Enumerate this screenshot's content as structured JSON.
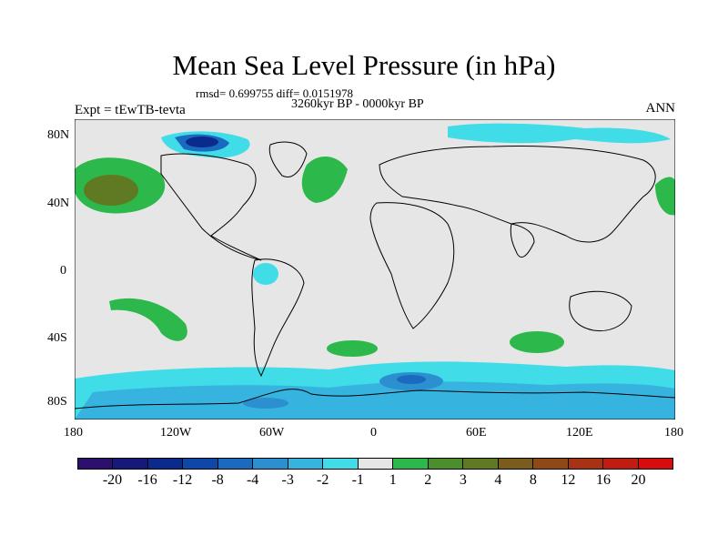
{
  "title": "Mean Sea Level Pressure (in hPa)",
  "stats": "rmsd= 0.699755 diff= 0.0151978",
  "period": "3260kyr BP - 0000kyr BP",
  "experiment": "Expt = tEwTB-tevta",
  "season": "ANN",
  "lat_labels": [
    "80N",
    "40N",
    "0",
    "40S",
    "80S"
  ],
  "lon_labels": [
    "180",
    "120W",
    "60W",
    "0",
    "60E",
    "120E",
    "180"
  ],
  "colorbar": {
    "colors": [
      "#2d0f6e",
      "#16197a",
      "#0a2a8c",
      "#0d47a8",
      "#1a6bc0",
      "#2b8fd0",
      "#37b3e0",
      "#40dde8",
      "#e6e6e6",
      "#2cb84a",
      "#4a8f2c",
      "#5f7a22",
      "#7a5d1c",
      "#8f4818",
      "#a83214",
      "#c01c10",
      "#d80c0c"
    ],
    "labels": [
      "-20",
      "-16",
      "-12",
      "-8",
      "-4",
      "-3",
      "-2",
      "-1",
      "1",
      "2",
      "3",
      "4",
      "8",
      "12",
      "16",
      "20"
    ]
  }
}
